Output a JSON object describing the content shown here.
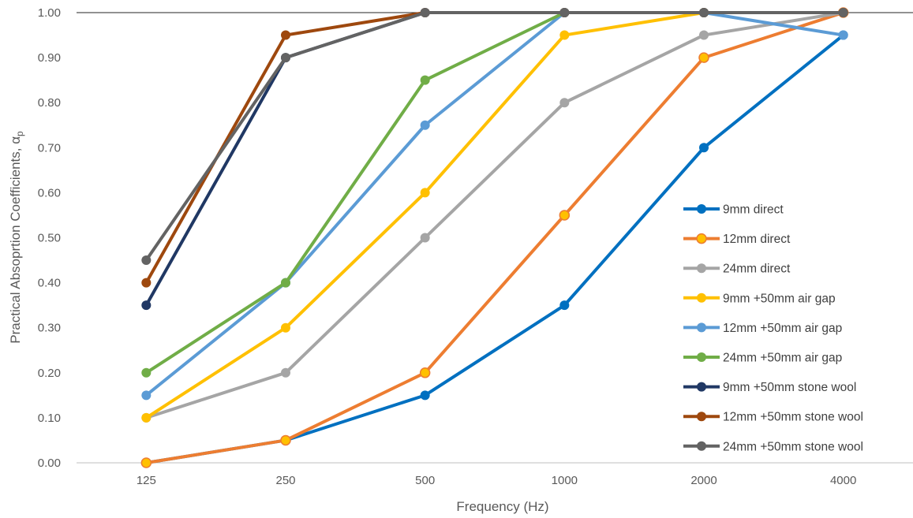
{
  "chart_data": {
    "type": "line",
    "xlabel": "Frequency (Hz)",
    "ylabel": "Practical Absoprtion Coefficients, α",
    "ylabel_sub": "p",
    "categories": [
      "125",
      "250",
      "500",
      "1000",
      "2000",
      "4000"
    ],
    "ylim": [
      0,
      1
    ],
    "yticks": [
      "0.00",
      "0.10",
      "0.20",
      "0.30",
      "0.40",
      "0.50",
      "0.60",
      "0.70",
      "0.80",
      "0.90",
      "1.00"
    ],
    "grid": false,
    "legend_position": "right",
    "series": [
      {
        "name": "9mm direct",
        "color": "#0070C0",
        "values": [
          0.0,
          0.05,
          0.15,
          0.35,
          0.7,
          0.95
        ]
      },
      {
        "name": "12mm direct",
        "color": "#ED7D31",
        "marker_fill": "#FFC000",
        "values": [
          0.0,
          0.05,
          0.2,
          0.55,
          0.9,
          1.0
        ]
      },
      {
        "name": "24mm direct",
        "color": "#A5A5A5",
        "values": [
          0.1,
          0.2,
          0.5,
          0.8,
          0.95,
          1.0
        ]
      },
      {
        "name": "9mm +50mm air gap",
        "color": "#FFC000",
        "values": [
          0.1,
          0.3,
          0.6,
          0.95,
          1.0,
          1.0
        ]
      },
      {
        "name": "12mm +50mm air gap",
        "color": "#5B9BD5",
        "values": [
          0.15,
          0.4,
          0.75,
          1.0,
          1.0,
          0.95
        ]
      },
      {
        "name": "24mm +50mm air gap",
        "color": "#70AD47",
        "values": [
          0.2,
          0.4,
          0.85,
          1.0,
          1.0,
          1.0
        ]
      },
      {
        "name": "9mm +50mm stone wool",
        "color": "#203864",
        "values": [
          0.35,
          0.9,
          1.0,
          1.0,
          1.0,
          1.0
        ]
      },
      {
        "name": "12mm +50mm stone wool",
        "color": "#9E480E",
        "values": [
          0.4,
          0.95,
          1.0,
          1.0,
          1.0,
          1.0
        ]
      },
      {
        "name": "24mm +50mm stone wool",
        "color": "#636363",
        "values": [
          0.45,
          0.9,
          1.0,
          1.0,
          1.0,
          1.0
        ]
      }
    ]
  }
}
